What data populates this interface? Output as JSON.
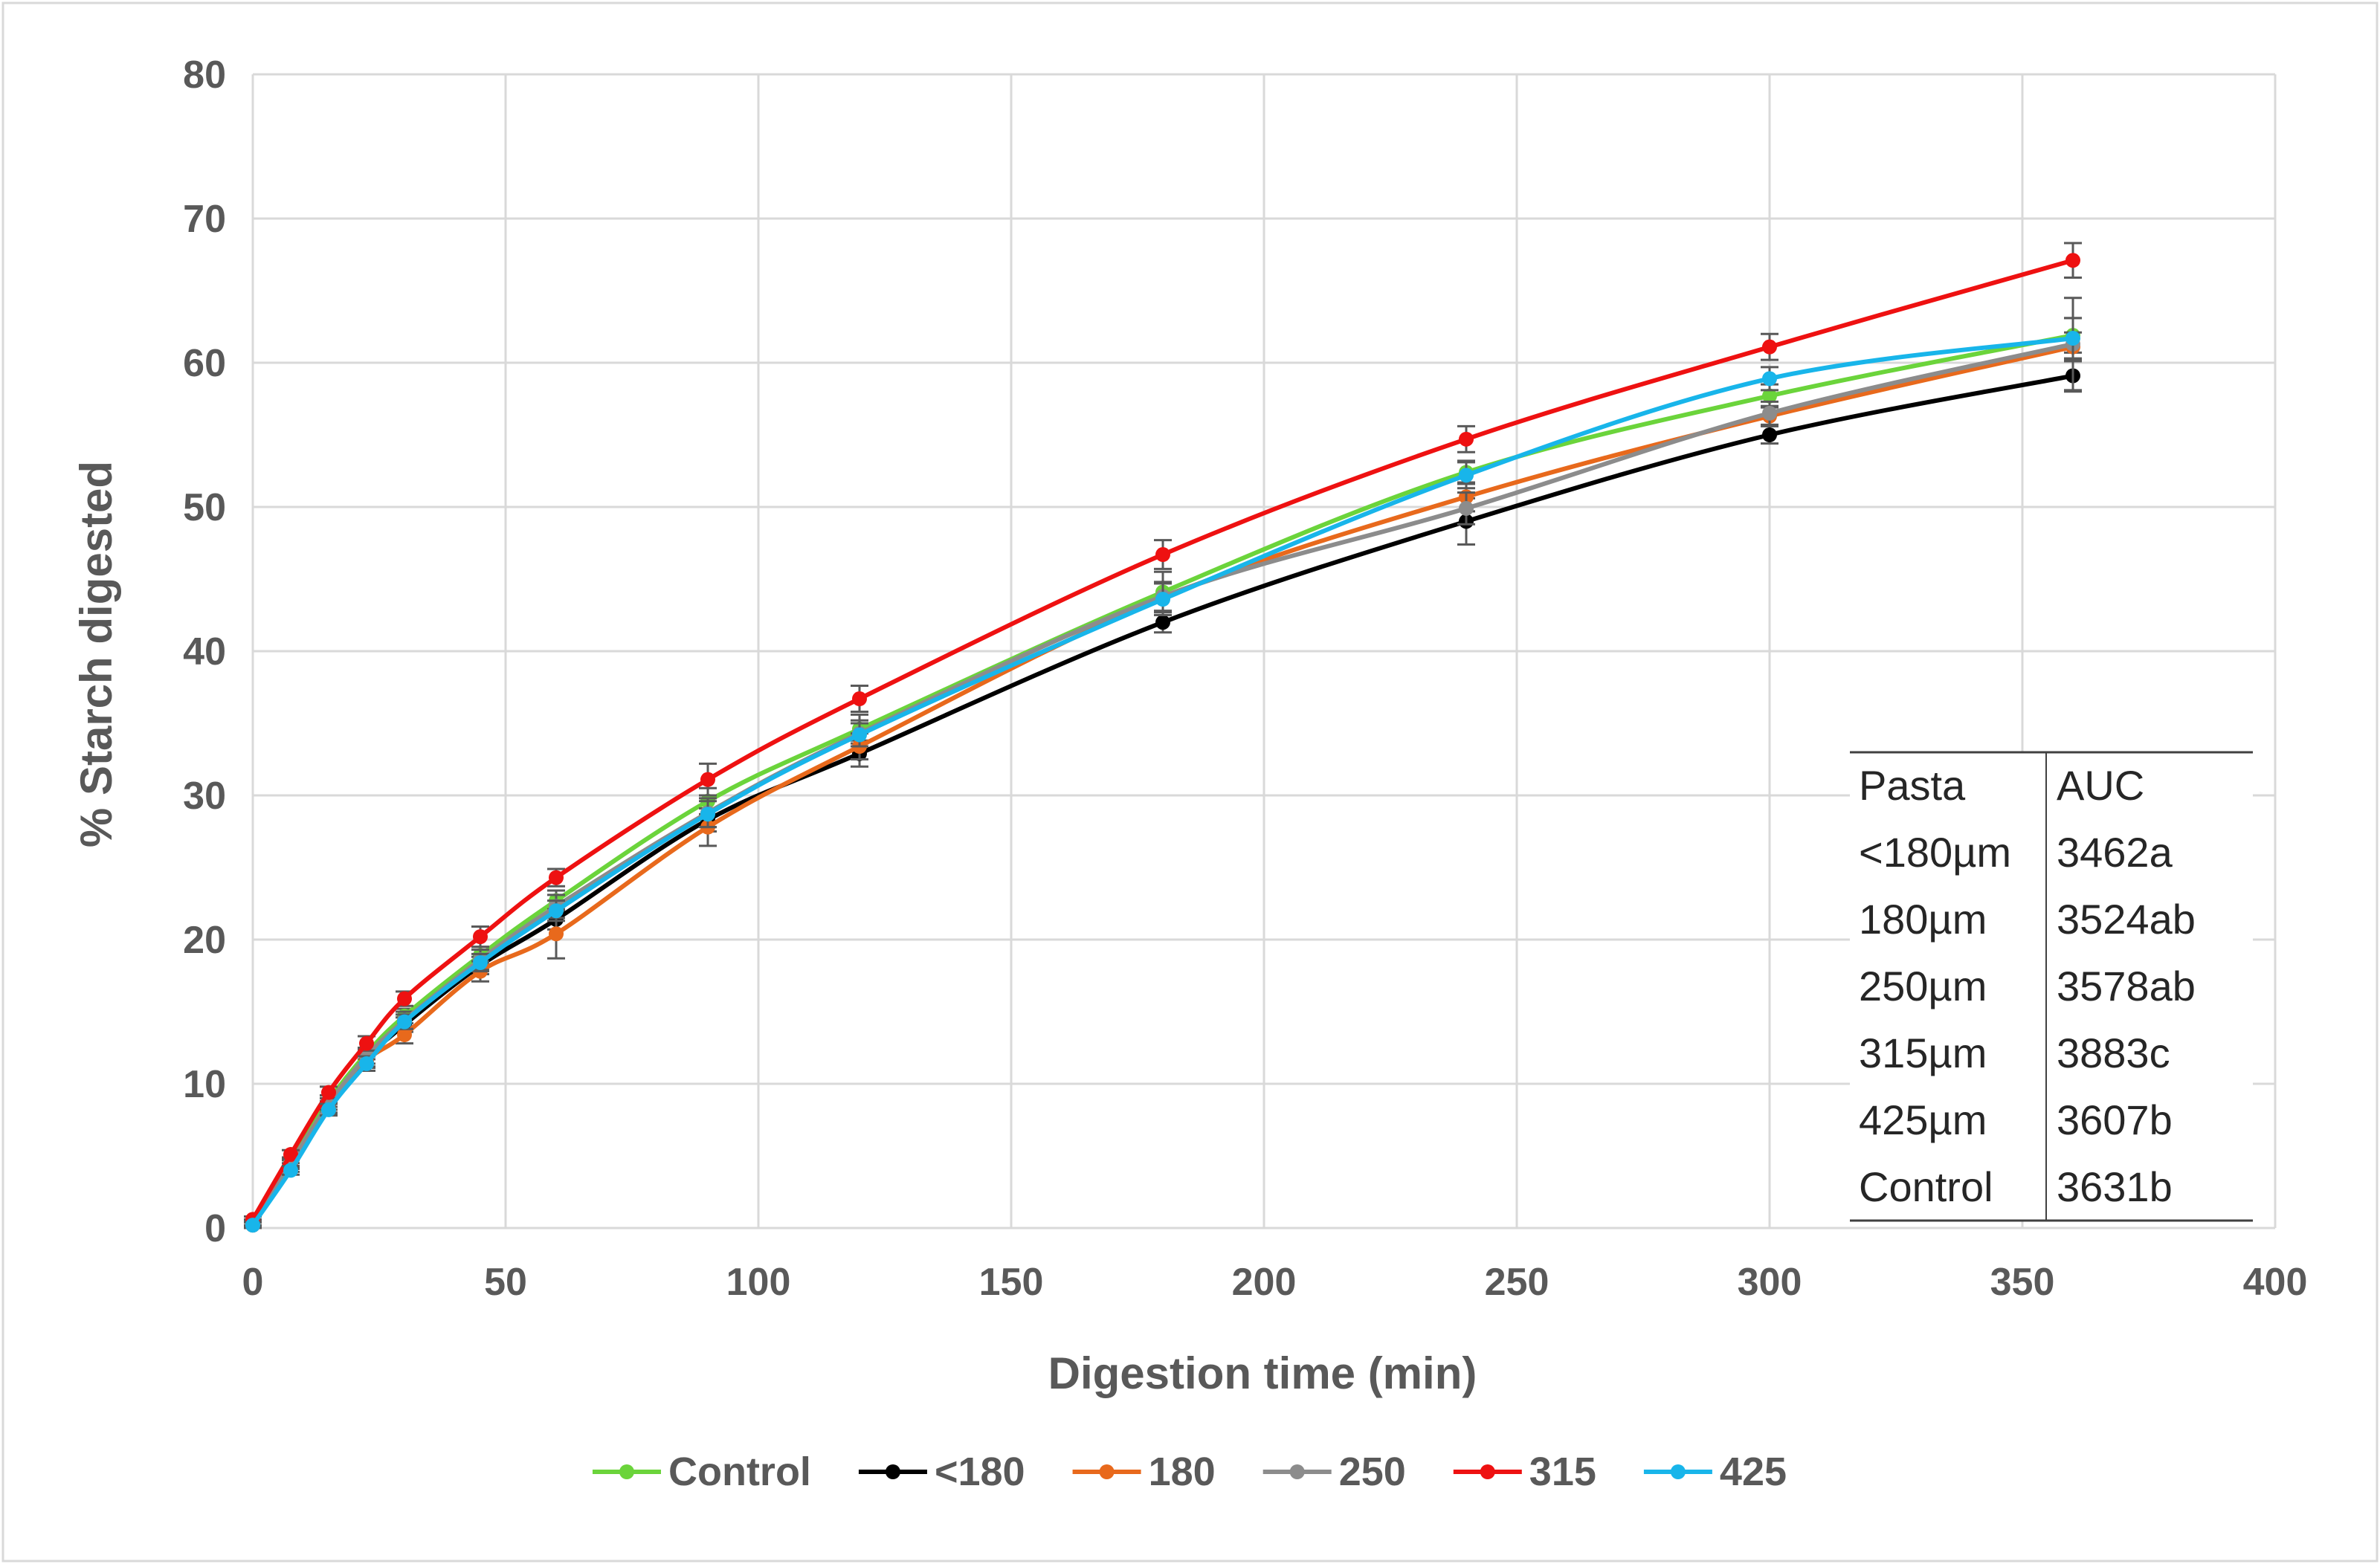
{
  "chart_data": {
    "type": "line",
    "xlabel": "Digestion time (min)",
    "ylabel": "% Starch digested",
    "xlim": [
      0,
      400
    ],
    "ylim": [
      0,
      80
    ],
    "xticks": [
      0,
      50,
      100,
      150,
      200,
      250,
      300,
      350,
      400
    ],
    "yticks": [
      0,
      10,
      20,
      30,
      40,
      50,
      60,
      70,
      80
    ],
    "grid": true,
    "legend_position": "bottom",
    "x": [
      0,
      7.5,
      15,
      22.5,
      30,
      45,
      60,
      90,
      120,
      180,
      240,
      300,
      360
    ],
    "series": [
      {
        "name": "Control",
        "color": "#6bd43b",
        "values": [
          0.3,
          4.6,
          8.8,
          12.1,
          14.7,
          18.9,
          22.7,
          29.6,
          34.6,
          44.1,
          52.4,
          57.7,
          61.9
        ],
        "errors": [
          0.2,
          0.3,
          0.4,
          0.4,
          0.5,
          0.6,
          0.7,
          0.9,
          1.0,
          1.4,
          0.8,
          0.8,
          1.2
        ]
      },
      {
        "name": "<180",
        "color": "#000000",
        "values": [
          0.2,
          4.2,
          8.4,
          11.7,
          14.1,
          18.2,
          21.4,
          28.3,
          32.9,
          42.0,
          49.0,
          55.0,
          59.1
        ],
        "errors": [
          0.2,
          0.3,
          0.4,
          0.5,
          0.5,
          0.6,
          0.7,
          0.8,
          0.9,
          0.7,
          1.6,
          0.6,
          1.1
        ]
      },
      {
        "name": "180",
        "color": "#e8691c",
        "values": [
          0.4,
          4.4,
          8.3,
          11.6,
          13.4,
          17.8,
          20.4,
          27.8,
          33.4,
          43.7,
          50.7,
          56.3,
          61.1
        ],
        "errors": [
          0.2,
          0.3,
          0.4,
          0.5,
          0.6,
          0.7,
          1.7,
          1.3,
          0.9,
          1.0,
          1.0,
          0.7,
          1.0
        ]
      },
      {
        "name": "250",
        "color": "#8c8c8c",
        "values": [
          0.3,
          4.5,
          8.6,
          11.9,
          14.4,
          18.6,
          22.3,
          28.8,
          34.3,
          43.8,
          49.9,
          56.5,
          61.3
        ],
        "errors": [
          0.2,
          0.3,
          0.4,
          0.5,
          0.6,
          0.7,
          0.8,
          1.0,
          0.9,
          1.0,
          1.1,
          0.8,
          3.2
        ]
      },
      {
        "name": "315",
        "color": "#ee1111",
        "values": [
          0.6,
          5.1,
          9.4,
          12.8,
          15.9,
          20.2,
          24.3,
          31.1,
          36.7,
          46.7,
          54.7,
          61.1,
          67.1
        ],
        "errors": [
          0.2,
          0.3,
          0.4,
          0.5,
          0.5,
          0.7,
          0.6,
          1.1,
          0.9,
          1.0,
          0.9,
          0.9,
          1.2
        ]
      },
      {
        "name": "425",
        "color": "#18b5ea",
        "values": [
          0.2,
          4.0,
          8.2,
          11.4,
          14.3,
          18.4,
          22.0,
          28.7,
          34.2,
          43.6,
          52.2,
          58.9,
          61.7
        ],
        "errors": [
          0.2,
          0.3,
          0.4,
          0.5,
          0.5,
          0.6,
          0.7,
          0.9,
          0.8,
          1.1,
          0.9,
          0.8,
          1.4
        ]
      }
    ],
    "auc_table": {
      "headers": [
        "Pasta",
        "AUC"
      ],
      "rows": [
        [
          "<180µm",
          "3462a"
        ],
        [
          "180µm",
          "3524ab"
        ],
        [
          "250µm",
          "3578ab"
        ],
        [
          "315µm",
          "3883c"
        ],
        [
          "425µm",
          "3607b"
        ],
        [
          "Control",
          "3631b"
        ]
      ]
    }
  }
}
